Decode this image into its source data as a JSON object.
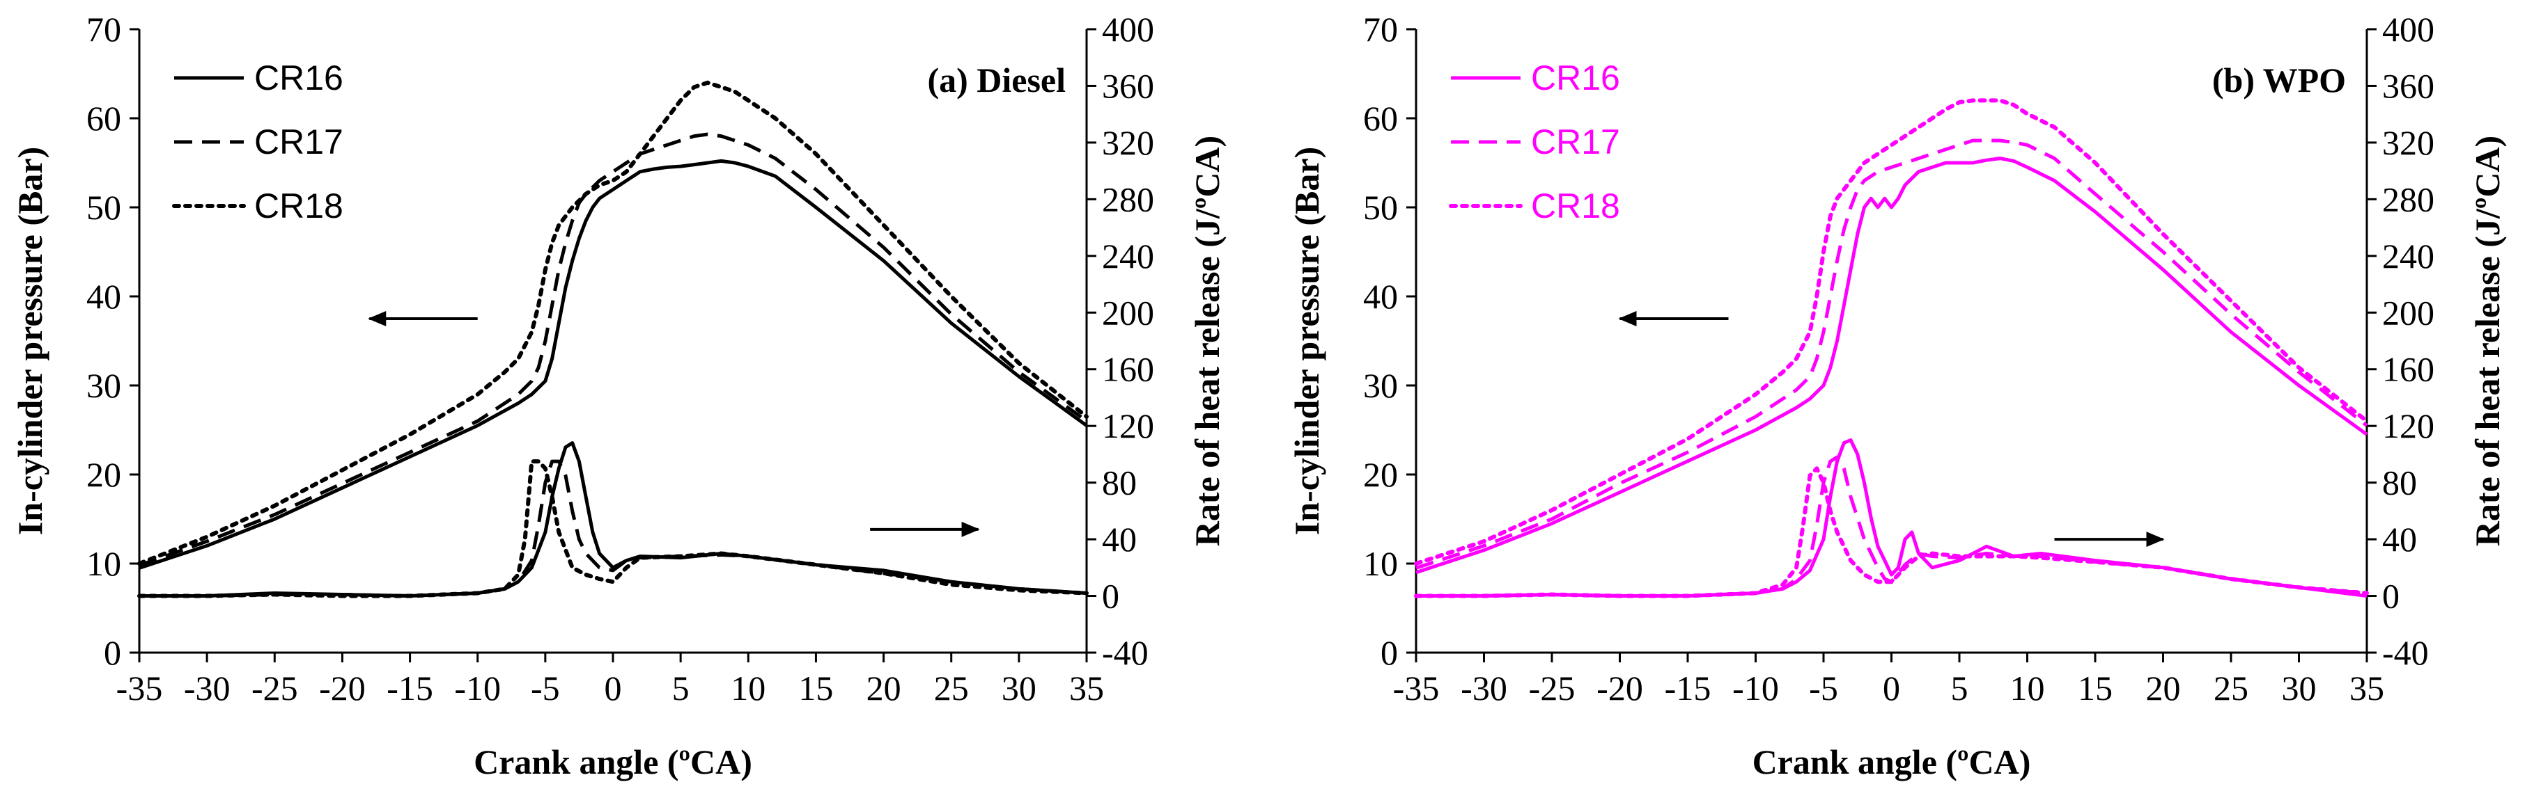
{
  "chart_data": [
    {
      "type": "line",
      "title": "(a) Diesel",
      "xlabel": "Crank angle (ºCA)",
      "ylabel": "In-cylinder pressure (Bar)",
      "y2label": "Rate of heat release (J/ºCA)",
      "xlim": [
        -35,
        35
      ],
      "ylim": [
        0,
        70
      ],
      "y2lim": [
        -40,
        400
      ],
      "xticks": [
        "-35",
        "-30",
        "-25",
        "-20",
        "-15",
        "-10",
        "-5",
        "0",
        "5",
        "10",
        "15",
        "20",
        "25",
        "30",
        "35"
      ],
      "yticks": [
        "0",
        "10",
        "20",
        "30",
        "40",
        "50",
        "60",
        "70"
      ],
      "y2ticks": [
        "-40",
        "0",
        "40",
        "80",
        "120",
        "160",
        "200",
        "240",
        "280",
        "320",
        "360",
        "400"
      ],
      "color": "#000000",
      "legend_position": "top-left",
      "arrows": [
        {
          "from": [
            -10,
            37.5
          ],
          "to": [
            -18,
            37.5
          ],
          "axis": "pressure"
        },
        {
          "from": [
            19,
            47
          ],
          "to": [
            27,
            47
          ],
          "axis": "heat-release"
        }
      ],
      "series": [
        {
          "name": "CR16",
          "style": "solid",
          "axis": "pressure",
          "x": [
            -35,
            -30,
            -25,
            -20,
            -15,
            -10,
            -7,
            -6,
            -5,
            -4.5,
            -4,
            -3.5,
            -3,
            -2.5,
            -2,
            -1.5,
            -1,
            0,
            1,
            2,
            3,
            4,
            5,
            6,
            7,
            8,
            9,
            10,
            12,
            15,
            20,
            25,
            30,
            35
          ],
          "y": [
            9.5,
            12,
            15,
            18.5,
            22,
            25.5,
            28,
            29,
            30.5,
            33,
            37,
            41,
            44,
            46.5,
            48.5,
            50,
            51,
            52,
            53,
            54,
            54.3,
            54.5,
            54.6,
            54.8,
            55,
            55.2,
            55,
            54.6,
            53.5,
            50,
            44,
            37,
            31,
            25.5
          ]
        },
        {
          "name": "CR17",
          "style": "dashed",
          "axis": "pressure",
          "x": [
            -35,
            -30,
            -25,
            -20,
            -15,
            -10,
            -7,
            -6,
            -5.5,
            -5,
            -4.5,
            -4,
            -3.5,
            -3,
            -2.5,
            -2,
            -1,
            0,
            1,
            2,
            3,
            4,
            5,
            6,
            7,
            8,
            9,
            10,
            12,
            15,
            20,
            25,
            30,
            35
          ],
          "y": [
            9.8,
            12.5,
            15.5,
            19,
            22.5,
            26,
            29,
            30.5,
            32,
            35,
            39,
            43,
            46,
            48.5,
            50.5,
            51.5,
            53,
            54,
            55,
            56,
            56.5,
            57,
            57.5,
            58,
            58.2,
            58,
            57.5,
            57,
            55.5,
            52,
            45.5,
            38,
            31.5,
            26
          ]
        },
        {
          "name": "CR18",
          "style": "dotted",
          "axis": "pressure",
          "x": [
            -35,
            -30,
            -25,
            -20,
            -15,
            -10,
            -8,
            -7,
            -6,
            -5.5,
            -5,
            -4.5,
            -4,
            -3,
            -2,
            -1,
            0,
            1,
            2,
            3,
            4,
            5,
            6,
            7,
            8,
            9,
            10,
            12,
            15,
            20,
            25,
            30,
            35
          ],
          "y": [
            10,
            13,
            16.5,
            20.5,
            24.5,
            29,
            31.5,
            33,
            36,
            39,
            43,
            46,
            48,
            50,
            51.5,
            52.5,
            53,
            54,
            56,
            58,
            60,
            62,
            63.5,
            64,
            63.5,
            63,
            62,
            60,
            56,
            48,
            40,
            32.5,
            26.5
          ]
        },
        {
          "name": "CR16",
          "style": "solid",
          "axis": "heat-release",
          "x": [
            -35,
            -30,
            -25,
            -20,
            -15,
            -10,
            -8,
            -7,
            -6,
            -5,
            -4.5,
            -4,
            -3.5,
            -3,
            -2.5,
            -2,
            -1.5,
            -1,
            -0.5,
            0,
            1,
            2,
            5,
            8,
            10,
            15,
            20,
            25,
            30,
            35
          ],
          "y": [
            0,
            0,
            2,
            1,
            0,
            2,
            5,
            10,
            20,
            45,
            70,
            90,
            105,
            108,
            95,
            70,
            45,
            30,
            25,
            20,
            25,
            28,
            27,
            30,
            28,
            22,
            18,
            10,
            5,
            2
          ]
        },
        {
          "name": "CR17",
          "style": "dashed",
          "axis": "heat-release",
          "x": [
            -35,
            -30,
            -25,
            -20,
            -15,
            -10,
            -8,
            -7,
            -6,
            -5.5,
            -5,
            -4.5,
            -4,
            -3.5,
            -3,
            -2.5,
            -2,
            -1,
            0,
            1,
            2,
            5,
            8,
            10,
            15,
            20,
            25,
            30,
            35
          ],
          "y": [
            0,
            0,
            1,
            1,
            0,
            2,
            5,
            10,
            25,
            50,
            80,
            95,
            95,
            85,
            60,
            40,
            30,
            20,
            18,
            25,
            27,
            28,
            29,
            28,
            22,
            16,
            10,
            5,
            2
          ]
        },
        {
          "name": "CR18",
          "style": "dotted",
          "axis": "heat-release",
          "x": [
            -35,
            -30,
            -25,
            -20,
            -15,
            -10,
            -8,
            -7,
            -6.5,
            -6,
            -5.5,
            -5,
            -4.5,
            -4,
            -3,
            -2,
            -1,
            0,
            1,
            2,
            5,
            8,
            10,
            15,
            20,
            25,
            30,
            35
          ],
          "y": [
            0,
            0,
            1,
            0,
            0,
            2,
            5,
            15,
            40,
            95,
            95,
            90,
            70,
            45,
            20,
            15,
            12,
            10,
            20,
            27,
            28,
            30,
            28,
            22,
            16,
            8,
            4,
            2
          ]
        }
      ]
    },
    {
      "type": "line",
      "title": "(b) WPO",
      "xlabel": "Crank angle (ºCA)",
      "ylabel": "In-cylinder pressure (Bar)",
      "y2label": "Rate of heat release (J/ºCA)",
      "xlim": [
        -35,
        35
      ],
      "ylim": [
        0,
        70
      ],
      "y2lim": [
        -40,
        400
      ],
      "xticks": [
        "-35",
        "-30",
        "-25",
        "-20",
        "-15",
        "-10",
        "-5",
        "0",
        "5",
        "10",
        "15",
        "20",
        "25",
        "30",
        "35"
      ],
      "yticks": [
        "0",
        "10",
        "20",
        "30",
        "40",
        "50",
        "60",
        "70"
      ],
      "y2ticks": [
        "-40",
        "0",
        "40",
        "80",
        "120",
        "160",
        "200",
        "240",
        "280",
        "320",
        "360",
        "400"
      ],
      "color": "#ff00ff",
      "legend_position": "top-left",
      "arrows": [
        {
          "from": [
            -12,
            37.5
          ],
          "to": [
            -20,
            37.5
          ],
          "axis": "pressure"
        },
        {
          "from": [
            12,
            40
          ],
          "to": [
            20,
            40
          ],
          "axis": "heat-release"
        }
      ],
      "series": [
        {
          "name": "CR16",
          "style": "solid",
          "axis": "pressure",
          "x": [
            -35,
            -30,
            -25,
            -20,
            -15,
            -10,
            -7,
            -6,
            -5,
            -4.5,
            -4,
            -3.5,
            -3,
            -2.5,
            -2,
            -1.5,
            -1,
            -0.5,
            0,
            0.5,
            1,
            2,
            3,
            4,
            5,
            6,
            7,
            8,
            9,
            10,
            12,
            15,
            20,
            25,
            30,
            35
          ],
          "y": [
            9,
            11.5,
            14.5,
            18,
            21.5,
            25,
            27.5,
            28.5,
            30,
            32,
            35,
            39,
            43,
            47,
            50,
            51,
            50,
            51,
            50,
            51,
            52.5,
            54,
            54.5,
            55,
            55,
            55,
            55.3,
            55.5,
            55.2,
            54.5,
            53,
            49.5,
            43,
            36,
            30,
            24.5
          ]
        },
        {
          "name": "CR17",
          "style": "dashed",
          "axis": "pressure",
          "x": [
            -35,
            -30,
            -25,
            -20,
            -15,
            -10,
            -7,
            -6,
            -5.5,
            -5,
            -4.5,
            -4,
            -3.5,
            -3,
            -2.5,
            -2,
            -1,
            0,
            1,
            2,
            3,
            4,
            5,
            6,
            7,
            8,
            9,
            10,
            12,
            15,
            20,
            25,
            30,
            35
          ],
          "y": [
            9.5,
            12,
            15,
            19,
            22.5,
            26.5,
            29.5,
            31,
            33,
            36,
            40,
            44,
            47.5,
            50,
            52,
            53,
            54,
            54.5,
            55,
            55.5,
            56,
            56.5,
            57,
            57.5,
            57.5,
            57.5,
            57.3,
            57,
            55.5,
            51.5,
            45,
            38,
            31.5,
            25.5
          ]
        },
        {
          "name": "CR18",
          "style": "dotted",
          "axis": "pressure",
          "x": [
            -35,
            -30,
            -25,
            -20,
            -15,
            -10,
            -8,
            -7,
            -6,
            -5.5,
            -5,
            -4.5,
            -4,
            -3,
            -2,
            -1,
            0,
            1,
            2,
            3,
            4,
            5,
            6,
            7,
            8,
            9,
            10,
            12,
            15,
            20,
            25,
            30,
            35
          ],
          "y": [
            10,
            12.5,
            16,
            20,
            24,
            29,
            31.5,
            33,
            36,
            40,
            45,
            49,
            51,
            53,
            55,
            56,
            57,
            58,
            59,
            60,
            61,
            61.8,
            62,
            62,
            62,
            61.5,
            60.5,
            59,
            55,
            47,
            39.5,
            32,
            26
          ]
        },
        {
          "name": "CR16",
          "style": "solid",
          "axis": "heat-release",
          "x": [
            -35,
            -30,
            -25,
            -20,
            -15,
            -10,
            -8,
            -7,
            -6,
            -5,
            -4.5,
            -4,
            -3.5,
            -3,
            -2.5,
            -2,
            -1.5,
            -1,
            -0.5,
            0,
            0.5,
            1,
            1.5,
            2,
            3,
            5,
            7,
            9,
            11,
            15,
            20,
            25,
            30,
            35
          ],
          "y": [
            0,
            0,
            1,
            0,
            0,
            2,
            5,
            10,
            18,
            40,
            70,
            95,
            108,
            110,
            100,
            80,
            55,
            35,
            25,
            15,
            20,
            40,
            45,
            30,
            20,
            25,
            35,
            28,
            30,
            25,
            20,
            12,
            6,
            0
          ]
        },
        {
          "name": "CR17",
          "style": "dashed",
          "axis": "heat-release",
          "x": [
            -35,
            -30,
            -25,
            -20,
            -15,
            -10,
            -8,
            -7,
            -6,
            -5.5,
            -5,
            -4.5,
            -4,
            -3.5,
            -3,
            -2.5,
            -2,
            -1.5,
            -1,
            -0.5,
            0,
            1,
            2,
            3,
            5,
            7,
            9,
            11,
            15,
            20,
            25,
            30,
            35
          ],
          "y": [
            0,
            0,
            1,
            0,
            0,
            2,
            5,
            12,
            25,
            50,
            80,
            95,
            98,
            90,
            70,
            55,
            40,
            30,
            20,
            12,
            10,
            22,
            30,
            28,
            27,
            30,
            28,
            28,
            24,
            20,
            12,
            6,
            2
          ]
        },
        {
          "name": "CR18",
          "style": "dotted",
          "axis": "heat-release",
          "x": [
            -35,
            -30,
            -25,
            -20,
            -15,
            -10,
            -8,
            -7,
            -6.5,
            -6,
            -5.5,
            -5,
            -4.5,
            -4,
            -3.5,
            -3,
            -2,
            -1,
            0,
            1,
            2,
            3,
            5,
            7,
            9,
            11,
            15,
            20,
            25,
            30,
            35
          ],
          "y": [
            0,
            0,
            1,
            0,
            0,
            2,
            8,
            20,
            50,
            85,
            90,
            80,
            60,
            45,
            35,
            25,
            15,
            10,
            10,
            20,
            28,
            30,
            28,
            28,
            28,
            27,
            24,
            20,
            12,
            6,
            2
          ]
        }
      ]
    }
  ]
}
